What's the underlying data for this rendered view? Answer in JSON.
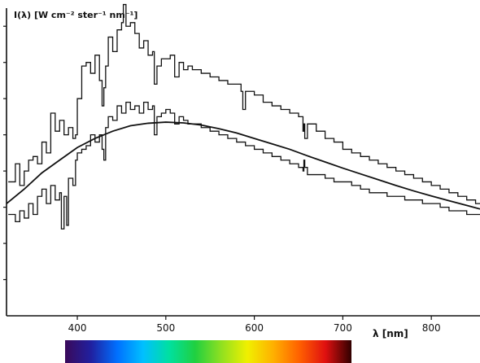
{
  "chart_data": {
    "type": "line",
    "ylabel": "I(λ) [W cm⁻² ster⁻¹ nm⁻¹]",
    "xlabel": "λ [nm]",
    "x_ticks": [
      400,
      500,
      600,
      700,
      800
    ],
    "xlim": [
      320,
      855
    ],
    "ylim": [
      0,
      8.5
    ],
    "y_ticks_unlabeled": [
      1,
      2,
      3,
      4,
      5,
      6,
      7,
      8
    ],
    "grid": false,
    "legend": "none",
    "spectrum_colorbar": {
      "range_nm": [
        400,
        710
      ],
      "stops": [
        "#3a0a5a",
        "#2020a0",
        "#0070ff",
        "#00c0ff",
        "#00e0a0",
        "#20d040",
        "#90e020",
        "#f0f000",
        "#ffb000",
        "#ff6000",
        "#e01010",
        "#300000"
      ]
    },
    "series": [
      {
        "style": "step",
        "x": [
          322,
          330,
          335,
          340,
          345,
          350,
          355,
          360,
          365,
          370,
          375,
          380,
          385,
          390,
          395,
          398,
          400,
          405,
          410,
          415,
          420,
          425,
          428,
          430,
          432,
          435,
          440,
          445,
          450,
          452,
          455,
          460,
          465,
          470,
          475,
          480,
          485,
          487,
          490,
          495,
          500,
          505,
          510,
          515,
          520,
          525,
          530,
          540,
          550,
          560,
          570,
          580,
          585,
          587,
          590,
          600,
          610,
          620,
          630,
          640,
          650,
          655,
          656,
          657,
          660,
          670,
          680,
          690,
          700,
          710,
          720,
          730,
          740,
          750,
          760,
          770,
          780,
          790,
          800,
          810,
          820,
          830,
          840,
          850,
          855
        ],
        "y": [
          3.7,
          4.2,
          3.6,
          4.0,
          4.3,
          4.4,
          4.2,
          4.8,
          4.5,
          5.6,
          5.1,
          5.4,
          5.0,
          5.2,
          4.9,
          5.0,
          6.0,
          6.9,
          7.0,
          6.7,
          7.2,
          6.5,
          5.8,
          6.3,
          6.9,
          7.7,
          7.3,
          7.9,
          8.1,
          8.6,
          8.0,
          8.1,
          7.8,
          7.4,
          7.6,
          7.2,
          7.3,
          6.4,
          6.9,
          7.1,
          7.1,
          7.2,
          6.6,
          7.0,
          6.8,
          6.9,
          6.8,
          6.7,
          6.6,
          6.5,
          6.4,
          6.4,
          6.2,
          5.7,
          6.2,
          6.1,
          5.9,
          5.8,
          5.7,
          5.6,
          5.5,
          5.1,
          5.3,
          4.9,
          5.3,
          5.1,
          4.9,
          4.8,
          4.6,
          4.5,
          4.4,
          4.3,
          4.2,
          4.1,
          4.0,
          3.9,
          3.8,
          3.7,
          3.6,
          3.5,
          3.4,
          3.3,
          3.2,
          3.1,
          3.1
        ]
      },
      {
        "style": "step",
        "x": [
          322,
          330,
          335,
          340,
          345,
          350,
          355,
          360,
          365,
          370,
          375,
          380,
          382,
          385,
          388,
          390,
          395,
          398,
          400,
          405,
          410,
          415,
          420,
          425,
          428,
          430,
          432,
          435,
          440,
          445,
          450,
          455,
          460,
          465,
          470,
          475,
          480,
          485,
          487,
          490,
          495,
          500,
          505,
          510,
          515,
          520,
          525,
          530,
          540,
          550,
          560,
          570,
          580,
          590,
          600,
          610,
          620,
          630,
          640,
          650,
          655,
          656,
          657,
          660,
          670,
          680,
          690,
          700,
          710,
          720,
          730,
          740,
          750,
          760,
          770,
          780,
          790,
          800,
          810,
          820,
          830,
          840,
          850,
          855
        ],
        "y": [
          2.8,
          2.6,
          2.9,
          2.7,
          3.1,
          2.8,
          3.3,
          3.5,
          3.1,
          3.6,
          3.2,
          3.4,
          2.4,
          3.3,
          2.5,
          3.8,
          3.6,
          4.3,
          4.5,
          4.6,
          4.7,
          5.0,
          4.8,
          5.0,
          4.6,
          4.3,
          5.2,
          5.5,
          5.4,
          5.8,
          5.6,
          5.9,
          5.7,
          5.8,
          5.6,
          5.9,
          5.7,
          5.8,
          5.0,
          5.5,
          5.6,
          5.7,
          5.6,
          5.3,
          5.5,
          5.4,
          5.3,
          5.3,
          5.2,
          5.1,
          5.0,
          4.9,
          4.8,
          4.7,
          4.6,
          4.5,
          4.4,
          4.3,
          4.2,
          4.1,
          4.0,
          4.3,
          4.1,
          3.9,
          3.9,
          3.8,
          3.7,
          3.7,
          3.6,
          3.5,
          3.4,
          3.4,
          3.3,
          3.3,
          3.2,
          3.2,
          3.1,
          3.1,
          3.0,
          2.9,
          2.9,
          2.8,
          2.8,
          2.8
        ]
      },
      {
        "style": "smooth",
        "x": [
          320,
          340,
          360,
          380,
          400,
          420,
          440,
          460,
          480,
          500,
          520,
          540,
          560,
          580,
          600,
          620,
          640,
          660,
          680,
          700,
          720,
          740,
          760,
          780,
          800,
          820,
          840,
          855
        ],
        "y": [
          3.1,
          3.5,
          3.95,
          4.3,
          4.65,
          4.9,
          5.1,
          5.25,
          5.32,
          5.35,
          5.33,
          5.27,
          5.17,
          5.05,
          4.9,
          4.75,
          4.6,
          4.42,
          4.25,
          4.08,
          3.92,
          3.76,
          3.6,
          3.45,
          3.31,
          3.18,
          3.05,
          2.95
        ]
      }
    ]
  }
}
